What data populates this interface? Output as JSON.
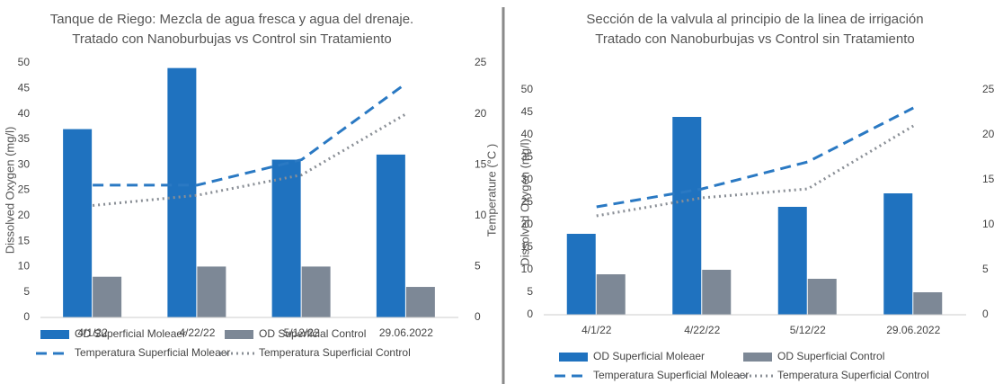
{
  "chart_data": [
    {
      "type": "bar",
      "title": [
        "Tanque de Riego: Mezcla de agua fresca y agua del drenaje.",
        "Tratado con Nanoburbujas vs Control sin Tratamiento"
      ],
      "ylabel": "Dissolved Oxygen (mg/l)",
      "y2label": "Temperature (°C )",
      "categories": [
        "4/1/22",
        "4/22/22",
        "5/12/22",
        "29.06.2022"
      ],
      "series": [
        {
          "name": "OD Superficial Moleaer",
          "color": "#1f72bf",
          "values": [
            37,
            49,
            31,
            32
          ]
        },
        {
          "name": "OD Superficial Control",
          "color": "#7d8896",
          "values": [
            8,
            10,
            10,
            6
          ]
        },
        {
          "name": "Temperatura Superficial Moleaer",
          "color": "#2a79c3",
          "axis": "y2",
          "style": "dashed",
          "values": [
            13,
            13,
            15.5,
            23
          ]
        },
        {
          "name": "Temperatura Superficial Control",
          "color": "#8a8f96",
          "axis": "y2",
          "style": "dotted",
          "values": [
            11,
            12,
            14,
            20
          ]
        }
      ],
      "ylim": [
        0,
        50
      ],
      "yticks": [
        0,
        5,
        10,
        15,
        20,
        25,
        30,
        35,
        40,
        45,
        50
      ],
      "y2lim": [
        0,
        25
      ],
      "y2ticks": [
        0,
        5,
        10,
        15,
        20,
        25
      ]
    },
    {
      "type": "bar",
      "title": [
        "Sección de la valvula al principio de la linea de irrigación",
        "Tratado con Nanoburbujas vs Control sin Tratamiento"
      ],
      "ylabel": "Dissolved Oxygen (mg/l)",
      "categories": [
        "4/1/22",
        "4/22/22",
        "5/12/22",
        "29.06.2022"
      ],
      "series": [
        {
          "name": "OD Superficial Moleaer",
          "color": "#1f72bf",
          "values": [
            18,
            44,
            24,
            27
          ]
        },
        {
          "name": "OD Superficial Control",
          "color": "#7d8896",
          "values": [
            9,
            10,
            8,
            5
          ]
        },
        {
          "name": "Temperatura Superficial Moleaer",
          "color": "#2a79c3",
          "axis": "y2",
          "style": "dashed",
          "values": [
            12,
            14,
            17,
            23
          ]
        },
        {
          "name": "Temperatura Superficial Control",
          "color": "#8a8f96",
          "axis": "y2",
          "style": "dotted",
          "values": [
            11,
            13,
            14,
            21
          ]
        }
      ],
      "ylim": [
        0,
        50
      ],
      "yticks": [
        0,
        5,
        10,
        15,
        20,
        25,
        30,
        35,
        40,
        45,
        50
      ],
      "y2lim": [
        0,
        25
      ],
      "y2ticks": [
        0,
        5,
        10,
        15,
        20,
        25
      ]
    }
  ]
}
